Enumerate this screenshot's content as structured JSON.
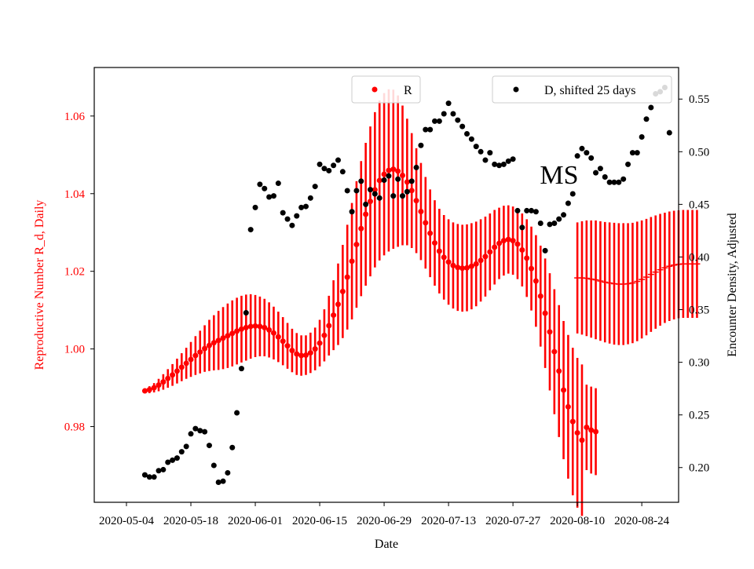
{
  "chart_data": {
    "type": "scatter",
    "title": "",
    "annotation": "MS",
    "xlabel": "Date",
    "ylabel_left": "Reproductive Number R_d, Daily",
    "ylabel_right": "Encounter Density, Adjusted",
    "x_ticks": [
      "2020-05-04",
      "2020-05-18",
      "2020-06-01",
      "2020-06-15",
      "2020-06-29",
      "2020-07-13",
      "2020-07-27",
      "2020-08-10",
      "2020-08-24"
    ],
    "xlim": [
      "2020-04-27",
      "2020-09-01"
    ],
    "ylim_left": [
      0.9605,
      1.0725
    ],
    "yticks_left": [
      "0.98",
      "1.00",
      "1.02",
      "1.04",
      "1.06"
    ],
    "ylim_right": [
      0.167,
      0.58
    ],
    "yticks_right": [
      "0.20",
      "0.25",
      "0.30",
      "0.35",
      "0.40",
      "0.45",
      "0.50",
      "0.55"
    ],
    "colors": {
      "R": "#ff0000",
      "D": "#000000",
      "left_axis": "#ff0000",
      "right_axis": "#000000"
    },
    "legend_R": {
      "label": "R",
      "placement": "top-center"
    },
    "legend_D": {
      "label": "D, shifted 25 days",
      "placement": "top-right"
    },
    "series": [
      {
        "name": "R",
        "axis": "left",
        "style": "points-with-errorbars",
        "start_date": "2020-05-08",
        "values": [
          0.9892,
          0.9895,
          0.99,
          0.9907,
          0.9915,
          0.9924,
          0.9933,
          0.9943,
          0.9953,
          0.9963,
          0.9973,
          0.9983,
          0.9992,
          1.0001,
          1.0009,
          1.0016,
          1.0022,
          1.0028,
          1.0034,
          1.004,
          1.0046,
          1.0051,
          1.0055,
          1.0058,
          1.0059,
          1.0058,
          1.0055,
          1.0049,
          1.0041,
          1.0031,
          1.002,
          1.0008,
          0.9996,
          0.9987,
          0.9983,
          0.9984,
          0.999,
          1.0,
          1.0015,
          1.0035,
          1.006,
          1.0087,
          1.0115,
          1.0148,
          1.0185,
          1.0226,
          1.0269,
          1.031,
          1.0347,
          1.038,
          1.041,
          1.0434,
          1.045,
          1.046,
          1.0463,
          1.0458,
          1.0447,
          1.043,
          1.0408,
          1.0382,
          1.0354,
          1.0325,
          1.0298,
          1.0273,
          1.0252,
          1.0236,
          1.0224,
          1.0215,
          1.021,
          1.0208,
          1.0209,
          1.0213,
          1.0219,
          1.0228,
          1.0238,
          1.025,
          1.0262,
          1.0272,
          1.0279,
          1.0282,
          1.0279,
          1.027,
          1.0255,
          1.0234,
          1.0207,
          1.0175,
          1.0136,
          1.0092,
          1.0044,
          0.9993,
          0.9943,
          0.9894,
          0.9851,
          0.9813,
          0.9784,
          0.9765,
          0.9798,
          0.9791,
          0.9787
        ],
        "errors": [
          0.0006,
          0.0009,
          0.0012,
          0.0016,
          0.002,
          0.0024,
          0.0028,
          0.0032,
          0.0036,
          0.004,
          0.0045,
          0.005,
          0.0055,
          0.006,
          0.0066,
          0.0071,
          0.0076,
          0.008,
          0.0083,
          0.0085,
          0.0086,
          0.0086,
          0.0085,
          0.0083,
          0.008,
          0.0077,
          0.0074,
          0.0071,
          0.0068,
          0.0065,
          0.0062,
          0.0059,
          0.0056,
          0.0054,
          0.0052,
          0.0051,
          0.0052,
          0.0055,
          0.006,
          0.0067,
          0.0077,
          0.009,
          0.0105,
          0.012,
          0.0135,
          0.015,
          0.0163,
          0.0174,
          0.0184,
          0.0193,
          0.02,
          0.0206,
          0.0209,
          0.0209,
          0.0205,
          0.0195,
          0.018,
          0.0163,
          0.0148,
          0.0135,
          0.0125,
          0.0118,
          0.0113,
          0.011,
          0.0109,
          0.0109,
          0.011,
          0.0111,
          0.0112,
          0.0112,
          0.0112,
          0.0111,
          0.0109,
          0.0106,
          0.0103,
          0.0099,
          0.0096,
          0.0092,
          0.009,
          0.0088,
          0.0088,
          0.009,
          0.0094,
          0.01,
          0.0108,
          0.0118,
          0.013,
          0.0141,
          0.0151,
          0.0161,
          0.017,
          0.0178,
          0.0185,
          0.019,
          0.0193,
          0.0195,
          0.011,
          0.0112,
          0.0112
        ]
      },
      {
        "name": "R",
        "axis": "left",
        "style": "ticks-with-errorbars",
        "start_date": "2020-08-10",
        "values": [
          1.0183,
          1.0183,
          1.0182,
          1.018,
          1.0178,
          1.0175,
          1.0172,
          1.017,
          1.0168,
          1.0167,
          1.0167,
          1.0168,
          1.017,
          1.0174,
          1.0179,
          1.0185,
          1.0192,
          1.0198,
          1.0204,
          1.0209,
          1.0213,
          1.0216,
          1.0218,
          1.0219,
          1.0219,
          1.0219,
          1.0219
        ],
        "errors": [
          0.0143,
          0.0146,
          0.0149,
          0.0151,
          0.0153,
          0.0154,
          0.0155,
          0.0156,
          0.0157,
          0.0157,
          0.0157,
          0.0156,
          0.0155,
          0.0154,
          0.0152,
          0.015,
          0.0148,
          0.0146,
          0.0144,
          0.0142,
          0.0141,
          0.014,
          0.0139,
          0.0139,
          0.0139,
          0.0139,
          0.0139
        ]
      },
      {
        "name": "D, shifted 25 days",
        "axis": "right",
        "style": "points",
        "points": [
          [
            "2020-05-08",
            0.193
          ],
          [
            "2020-05-09",
            0.191
          ],
          [
            "2020-05-10",
            0.191
          ],
          [
            "2020-05-11",
            0.197
          ],
          [
            "2020-05-12",
            0.198
          ],
          [
            "2020-05-13",
            0.205
          ],
          [
            "2020-05-14",
            0.207
          ],
          [
            "2020-05-15",
            0.209
          ],
          [
            "2020-05-16",
            0.215
          ],
          [
            "2020-05-17",
            0.22
          ],
          [
            "2020-05-18",
            0.232
          ],
          [
            "2020-05-19",
            0.237
          ],
          [
            "2020-05-20",
            0.235
          ],
          [
            "2020-05-21",
            0.234
          ],
          [
            "2020-05-22",
            0.221
          ],
          [
            "2020-05-23",
            0.202
          ],
          [
            "2020-05-24",
            0.186
          ],
          [
            "2020-05-25",
            0.187
          ],
          [
            "2020-05-26",
            0.195
          ],
          [
            "2020-05-27",
            0.219
          ],
          [
            "2020-05-28",
            0.252
          ],
          [
            "2020-05-29",
            0.294
          ],
          [
            "2020-05-30",
            0.347
          ],
          [
            "2020-05-31",
            0.426
          ],
          [
            "2020-06-01",
            0.447
          ],
          [
            "2020-06-02",
            0.469
          ],
          [
            "2020-06-03",
            0.465
          ],
          [
            "2020-06-04",
            0.457
          ],
          [
            "2020-06-05",
            0.458
          ],
          [
            "2020-06-06",
            0.47
          ],
          [
            "2020-06-07",
            0.442
          ],
          [
            "2020-06-08",
            0.436
          ],
          [
            "2020-06-09",
            0.43
          ],
          [
            "2020-06-10",
            0.439
          ],
          [
            "2020-06-11",
            0.447
          ],
          [
            "2020-06-12",
            0.448
          ],
          [
            "2020-06-13",
            0.456
          ],
          [
            "2020-06-14",
            0.467
          ],
          [
            "2020-06-15",
            0.488
          ],
          [
            "2020-06-16",
            0.484
          ],
          [
            "2020-06-17",
            0.482
          ],
          [
            "2020-06-18",
            0.487
          ],
          [
            "2020-06-19",
            0.492
          ],
          [
            "2020-06-20",
            0.481
          ],
          [
            "2020-06-21",
            0.463
          ],
          [
            "2020-06-22",
            0.443
          ],
          [
            "2020-06-23",
            0.463
          ],
          [
            "2020-06-24",
            0.472
          ],
          [
            "2020-06-25",
            0.45
          ],
          [
            "2020-06-26",
            0.464
          ],
          [
            "2020-06-27",
            0.46
          ],
          [
            "2020-06-28",
            0.456
          ],
          [
            "2020-06-29",
            0.473
          ],
          [
            "2020-06-30",
            0.477
          ],
          [
            "2020-07-01",
            0.458
          ],
          [
            "2020-07-02",
            0.474
          ],
          [
            "2020-07-03",
            0.458
          ],
          [
            "2020-07-04",
            0.462
          ],
          [
            "2020-07-05",
            0.472
          ],
          [
            "2020-07-06",
            0.485
          ],
          [
            "2020-07-07",
            0.506
          ],
          [
            "2020-07-08",
            0.521
          ],
          [
            "2020-07-09",
            0.521
          ],
          [
            "2020-07-10",
            0.529
          ],
          [
            "2020-07-11",
            0.529
          ],
          [
            "2020-07-12",
            0.536
          ],
          [
            "2020-07-13",
            0.546
          ],
          [
            "2020-07-14",
            0.536
          ],
          [
            "2020-07-15",
            0.53
          ],
          [
            "2020-07-16",
            0.524
          ],
          [
            "2020-07-17",
            0.517
          ],
          [
            "2020-07-18",
            0.512
          ],
          [
            "2020-07-19",
            0.505
          ],
          [
            "2020-07-20",
            0.5
          ],
          [
            "2020-07-21",
            0.492
          ],
          [
            "2020-07-22",
            0.499
          ],
          [
            "2020-07-23",
            0.488
          ],
          [
            "2020-07-24",
            0.487
          ],
          [
            "2020-07-25",
            0.488
          ],
          [
            "2020-07-26",
            0.491
          ],
          [
            "2020-07-27",
            0.493
          ],
          [
            "2020-07-28",
            0.444
          ],
          [
            "2020-07-29",
            0.428
          ],
          [
            "2020-07-30",
            0.444
          ],
          [
            "2020-07-31",
            0.444
          ],
          [
            "2020-08-01",
            0.443
          ],
          [
            "2020-08-02",
            0.432
          ],
          [
            "2020-08-03",
            0.406
          ],
          [
            "2020-08-04",
            0.431
          ],
          [
            "2020-08-05",
            0.432
          ],
          [
            "2020-08-06",
            0.436
          ],
          [
            "2020-08-07",
            0.44
          ],
          [
            "2020-08-08",
            0.451
          ],
          [
            "2020-08-09",
            0.46
          ],
          [
            "2020-08-10",
            0.496
          ],
          [
            "2020-08-11",
            0.503
          ],
          [
            "2020-08-12",
            0.499
          ],
          [
            "2020-08-13",
            0.494
          ],
          [
            "2020-08-14",
            0.48
          ],
          [
            "2020-08-15",
            0.484
          ],
          [
            "2020-08-16",
            0.476
          ],
          [
            "2020-08-17",
            0.471
          ],
          [
            "2020-08-18",
            0.471
          ],
          [
            "2020-08-19",
            0.471
          ],
          [
            "2020-08-20",
            0.474
          ],
          [
            "2020-08-21",
            0.488
          ],
          [
            "2020-08-22",
            0.499
          ],
          [
            "2020-08-23",
            0.499
          ],
          [
            "2020-08-24",
            0.514
          ],
          [
            "2020-08-25",
            0.531
          ],
          [
            "2020-08-26",
            0.542
          ],
          [
            "2020-08-27",
            0.555
          ],
          [
            "2020-08-28",
            0.557
          ],
          [
            "2020-08-29",
            0.561
          ],
          [
            "2020-08-30",
            0.518
          ]
        ]
      }
    ]
  }
}
